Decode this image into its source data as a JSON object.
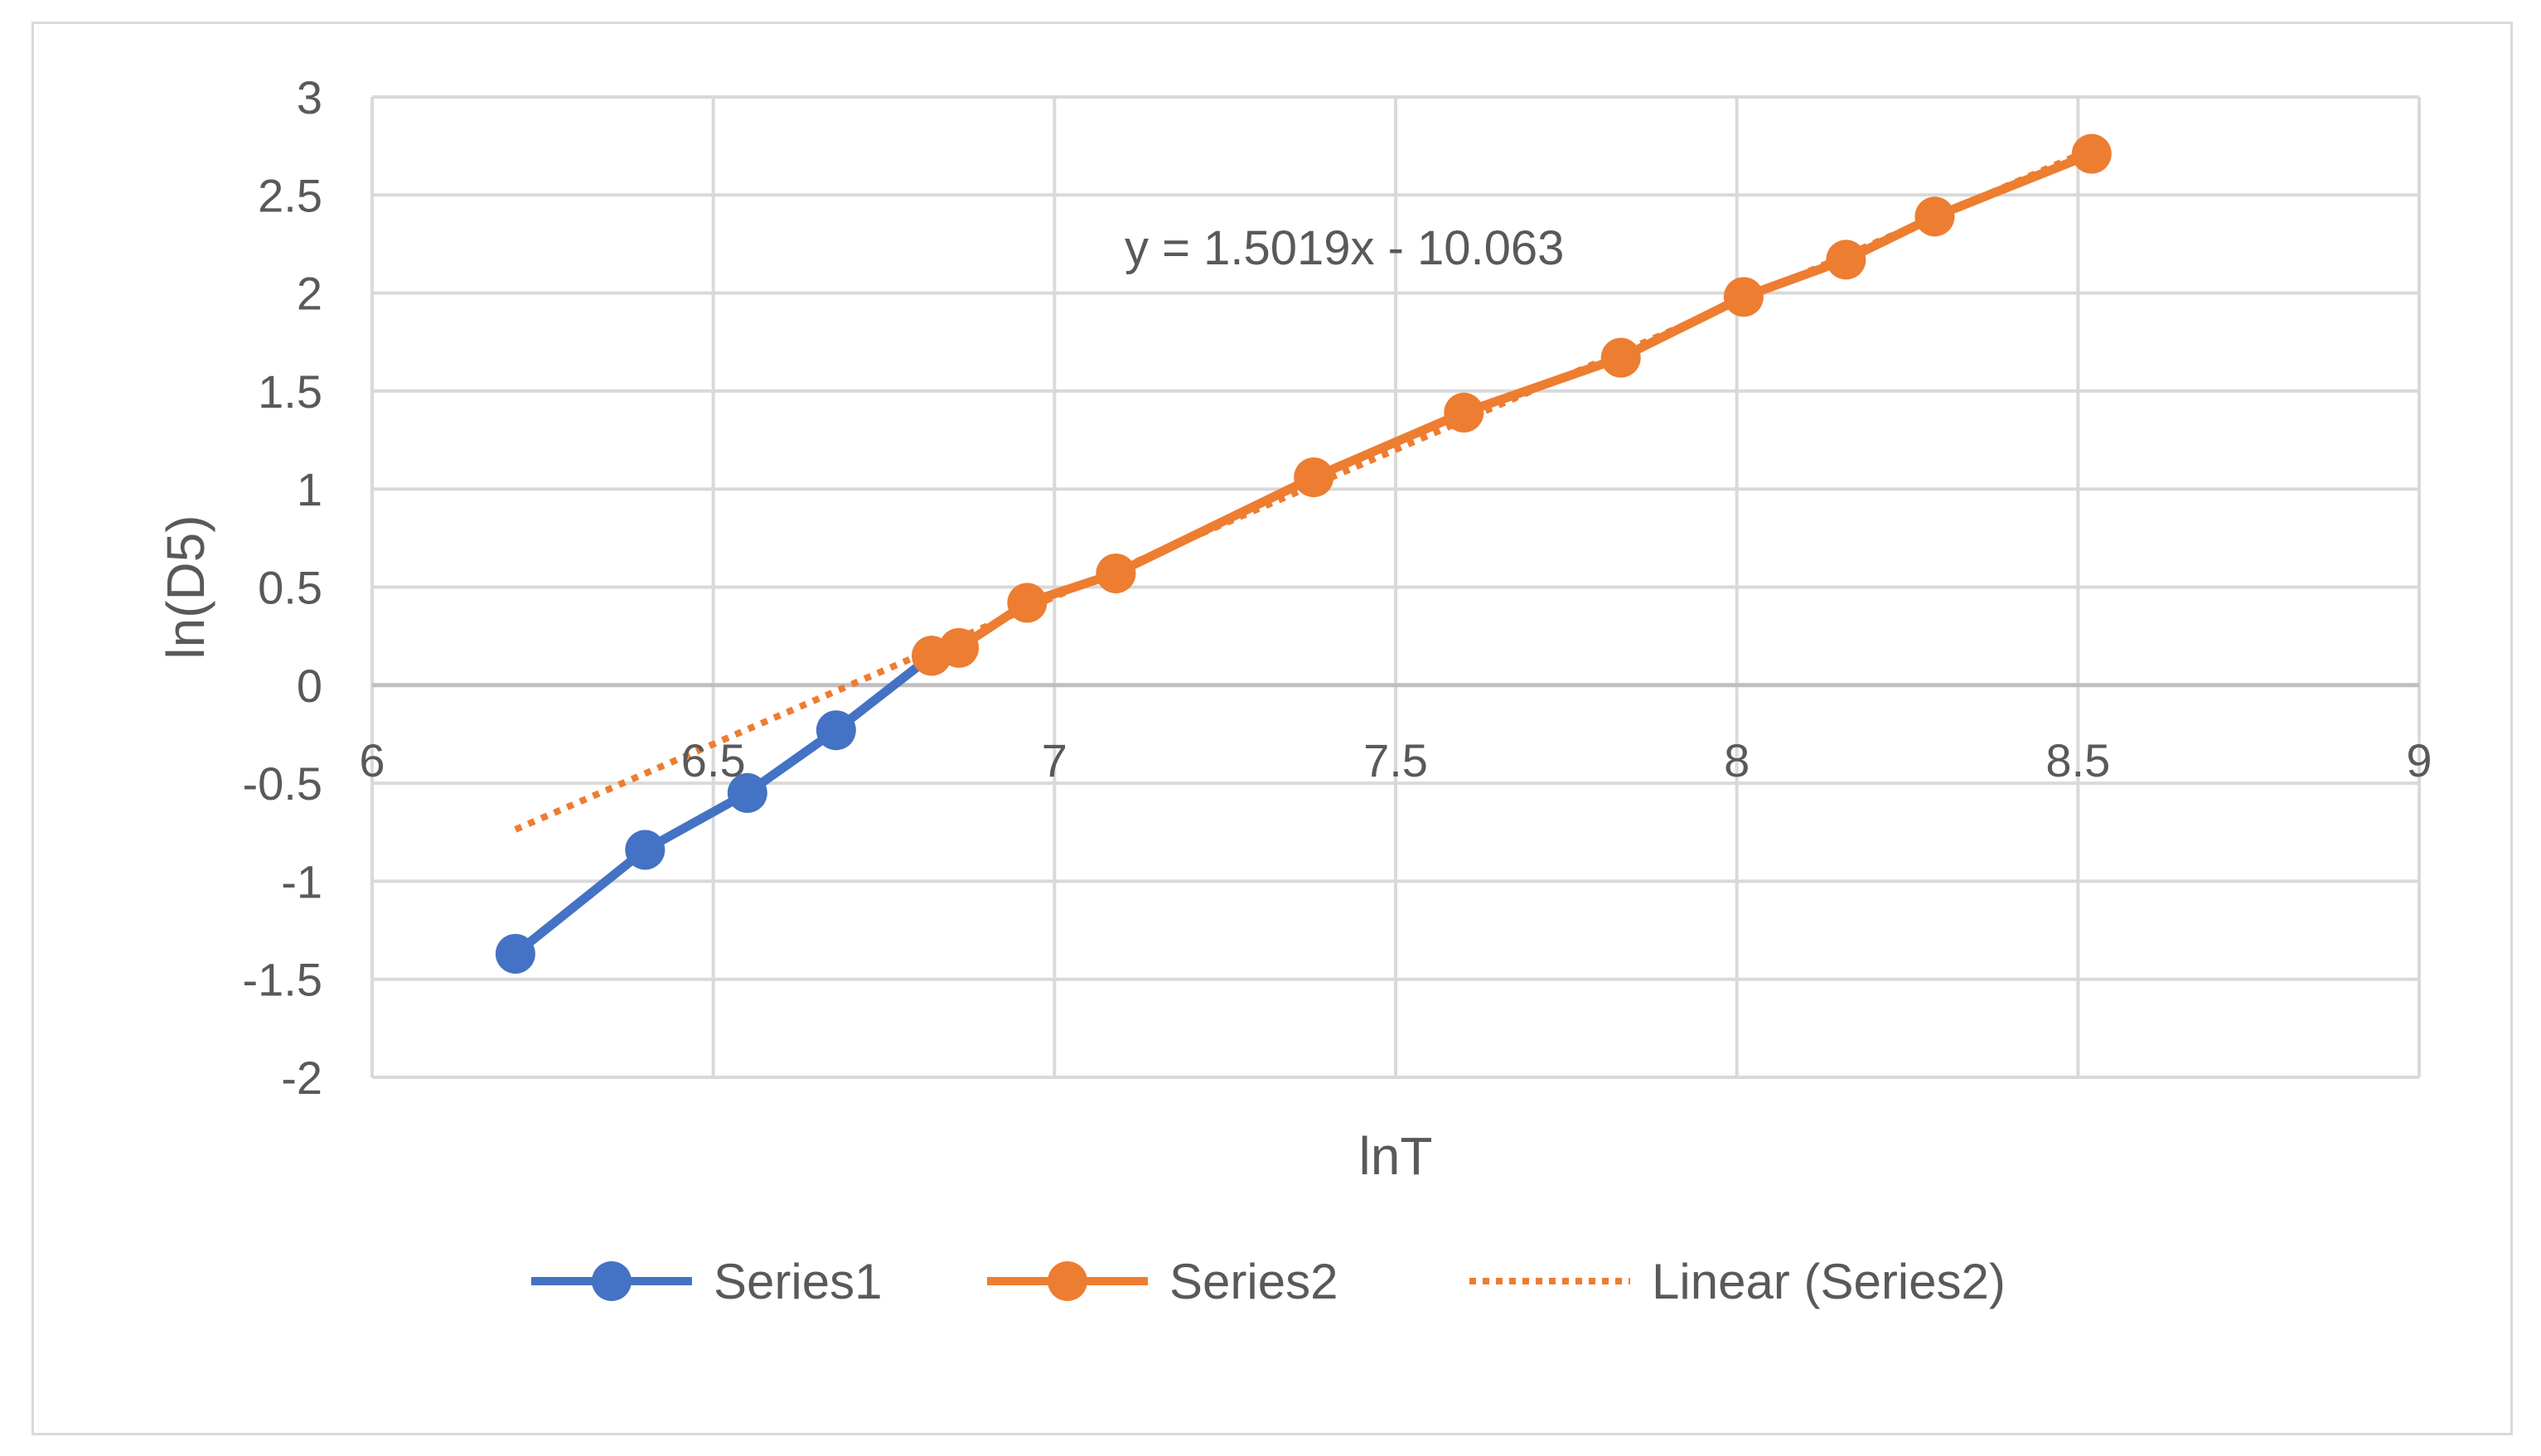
{
  "chart_data": {
    "type": "scatter",
    "xlabel": "lnT",
    "ylabel": "ln(D5)",
    "xlim": [
      6,
      9
    ],
    "ylim": [
      -2,
      3
    ],
    "x_ticks": [
      6,
      6.5,
      7,
      7.5,
      8,
      8.5,
      9
    ],
    "y_ticks": [
      3,
      2.5,
      2,
      1.5,
      1,
      0.5,
      0,
      -0.5,
      -1,
      -1.5,
      -2
    ],
    "grid": true,
    "legend_position": "bottom",
    "series": [
      {
        "name": "Series1",
        "color": "#4472c4",
        "marker": "circle",
        "line": "solid",
        "x": [
          6.21,
          6.4,
          6.55,
          6.68,
          6.82
        ],
        "y": [
          -1.37,
          -0.84,
          -0.55,
          -0.23,
          0.15
        ]
      },
      {
        "name": "Series2",
        "color": "#ed7d31",
        "marker": "circle",
        "line": "solid",
        "x": [
          6.82,
          6.86,
          6.96,
          7.09,
          7.38,
          7.6,
          7.83,
          8.01,
          8.16,
          8.29,
          8.52
        ],
        "y": [
          0.15,
          0.19,
          0.42,
          0.57,
          1.06,
          1.39,
          1.67,
          1.98,
          2.17,
          2.39,
          2.71
        ]
      }
    ],
    "trendline": {
      "name": "Linear (Series2)",
      "color": "#ed7d31",
      "style": "dotted",
      "slope": 1.5019,
      "intercept": -10.063,
      "x_range": [
        6.21,
        8.52
      ],
      "equation": "y = 1.5019x - 10.063"
    }
  }
}
